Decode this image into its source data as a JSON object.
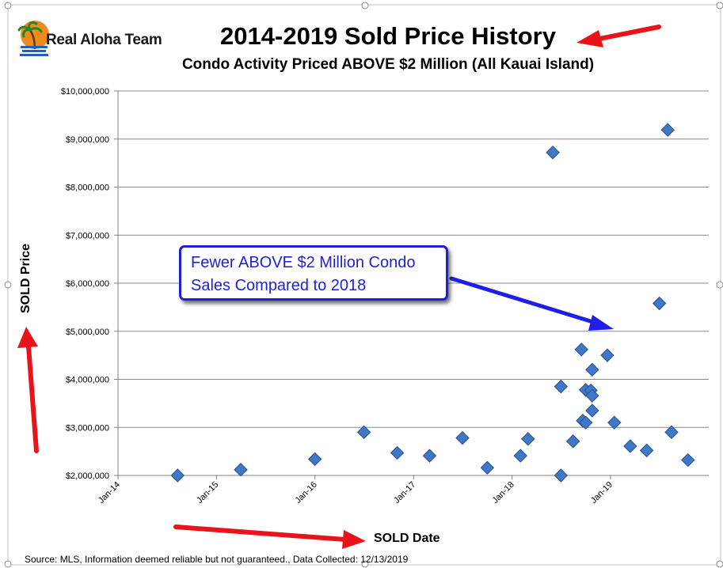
{
  "brand": {
    "logo_text": "Real Aloha Team"
  },
  "colors": {
    "marker": "#3f78c6",
    "marker_stroke": "#274f8e",
    "arrow_red": "#e8141a",
    "arrow_blue": "#1e1ee8",
    "callout_text": "#1f1fd6"
  },
  "annotation": {
    "line1": "Fewer ABOVE $2 Million Condo",
    "line2": "Sales Compared to 2018"
  },
  "source_note": "Source: MLS, Information deemed reliable but not guaranteed., Data Collected: 12/13/2019",
  "chart_data": {
    "type": "scatter",
    "title": "2014-2019 Sold Price History",
    "subtitle": "Condo Activity Priced ABOVE $2 Million (All Kauai Island)",
    "xlabel": "SOLD Date",
    "ylabel": "SOLD Price",
    "xlim": [
      "2014-01-01",
      "2019-12-31"
    ],
    "ylim": [
      2000000,
      10000000
    ],
    "x_ticks": [
      "Jan-14",
      "Jan-15",
      "Jan-16",
      "Jan-17",
      "Jan-18",
      "Jan-19"
    ],
    "y_ticks": [
      "$2,000,000",
      "$3,000,000",
      "$4,000,000",
      "$5,000,000",
      "$6,000,000",
      "$7,000,000",
      "$8,000,000",
      "$9,000,000",
      "$10,000,000"
    ],
    "grid": "horizontal",
    "marker": "diamond",
    "points": [
      {
        "x": "2014-08-10",
        "y": 2000000
      },
      {
        "x": "2015-04-01",
        "y": 2120000
      },
      {
        "x": "2016-01-01",
        "y": 2340000
      },
      {
        "x": "2016-07-01",
        "y": 2900000
      },
      {
        "x": "2016-11-01",
        "y": 2470000
      },
      {
        "x": "2017-03-01",
        "y": 2410000
      },
      {
        "x": "2017-07-01",
        "y": 2780000
      },
      {
        "x": "2017-10-01",
        "y": 2160000
      },
      {
        "x": "2018-02-01",
        "y": 2410000
      },
      {
        "x": "2018-03-01",
        "y": 2760000
      },
      {
        "x": "2018-06-01",
        "y": 8720000
      },
      {
        "x": "2018-07-01",
        "y": 3850000
      },
      {
        "x": "2018-07-01",
        "y": 2000000
      },
      {
        "x": "2018-08-15",
        "y": 2710000
      },
      {
        "x": "2018-09-15",
        "y": 4620000
      },
      {
        "x": "2018-09-20",
        "y": 3140000
      },
      {
        "x": "2018-10-01",
        "y": 3100000
      },
      {
        "x": "2018-10-01",
        "y": 3780000
      },
      {
        "x": "2018-10-20",
        "y": 3770000
      },
      {
        "x": "2018-10-25",
        "y": 3660000
      },
      {
        "x": "2018-10-25",
        "y": 4200000
      },
      {
        "x": "2018-10-25",
        "y": 3350000
      },
      {
        "x": "2018-12-20",
        "y": 4500000
      },
      {
        "x": "2019-01-15",
        "y": 3100000
      },
      {
        "x": "2019-03-15",
        "y": 2610000
      },
      {
        "x": "2019-05-15",
        "y": 2520000
      },
      {
        "x": "2019-07-01",
        "y": 5580000
      },
      {
        "x": "2019-08-01",
        "y": 9190000
      },
      {
        "x": "2019-08-15",
        "y": 2900000
      },
      {
        "x": "2019-10-15",
        "y": 2320000
      }
    ]
  }
}
